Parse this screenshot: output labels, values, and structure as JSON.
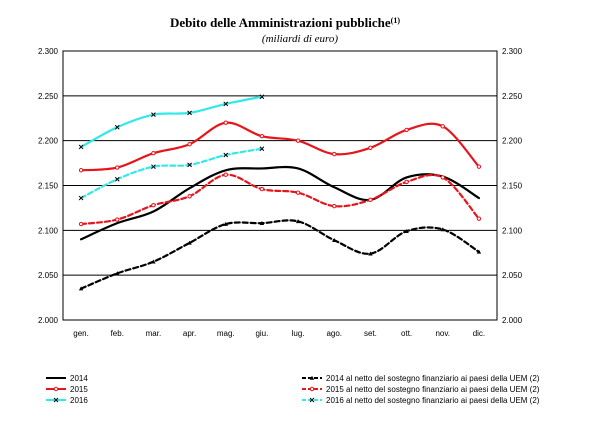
{
  "chart_data": {
    "type": "line",
    "title": "Debito delle Amministrazioni pubbliche",
    "title_note": "(1)",
    "subtitle": "(miliardi di euro)",
    "categories": [
      "gen.",
      "feb.",
      "mar.",
      "apr.",
      "mag.",
      "giu.",
      "lug.",
      "ago.",
      "set.",
      "ott.",
      "nov.",
      "dic."
    ],
    "ylim": [
      2000,
      2300
    ],
    "yticks": [
      "2.000",
      "2.050",
      "2.100",
      "2.150",
      "2.200",
      "2.250",
      "2.300"
    ],
    "grid": "horizontal",
    "legend_position": "bottom",
    "series": [
      {
        "name": "2014",
        "color": "#000000",
        "style": "solid",
        "marker": "none",
        "values": [
          2090,
          2108,
          2121,
          2147,
          2167,
          2169,
          2169,
          2148,
          2134,
          2159,
          2160,
          2136
        ]
      },
      {
        "name": "2015",
        "color": "#e8141b",
        "style": "solid",
        "marker": "circle",
        "values": [
          2167,
          2170,
          2186,
          2196,
          2220,
          2205,
          2200,
          2185,
          2192,
          2212,
          2216,
          2171
        ]
      },
      {
        "name": "2016",
        "color": "#33e8e8",
        "style": "solid",
        "marker": "x",
        "values": [
          2193,
          2215,
          2229,
          2231,
          2241,
          2249,
          null,
          null,
          null,
          null,
          null,
          null
        ]
      },
      {
        "name": "2014 al netto del sostegno finanziario ai paesi della UEM (2)",
        "color": "#000000",
        "style": "dashed",
        "marker": "triangle",
        "values": [
          2035,
          2052,
          2065,
          2086,
          2107,
          2108,
          2110,
          2089,
          2074,
          2099,
          2101,
          2076
        ]
      },
      {
        "name": "2015 al netto del sostegno finanziario ai paesi della UEM (2)",
        "color": "#e8141b",
        "style": "dashed",
        "marker": "circle",
        "values": [
          2107,
          2112,
          2128,
          2138,
          2162,
          2146,
          2142,
          2127,
          2134,
          2154,
          2159,
          2113
        ]
      },
      {
        "name": "2016 al netto del sostegno finanziario ai paesi della UEM (2)",
        "color": "#33e8e8",
        "style": "dashed",
        "marker": "x",
        "values": [
          2136,
          2157,
          2171,
          2173,
          2184,
          2191,
          null,
          null,
          null,
          null,
          null,
          null
        ]
      }
    ]
  }
}
